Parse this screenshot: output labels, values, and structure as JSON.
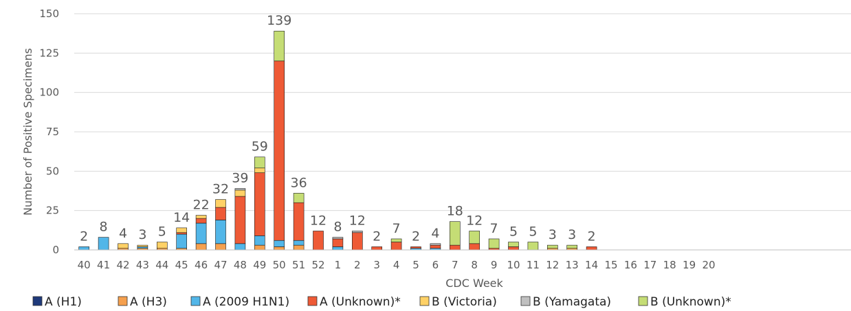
{
  "chart_data": {
    "type": "bar",
    "stacked": true,
    "title": "",
    "xlabel": "CDC Week",
    "ylabel": "Number of Positive Specimens",
    "ylim": [
      0,
      150
    ],
    "yticks": [
      0,
      25,
      50,
      75,
      100,
      125,
      150
    ],
    "grid": "horizontal",
    "legend_position": "bottom",
    "categories": [
      "40",
      "41",
      "42",
      "43",
      "44",
      "45",
      "46",
      "47",
      "48",
      "49",
      "50",
      "51",
      "52",
      "1",
      "2",
      "3",
      "4",
      "5",
      "6",
      "7",
      "8",
      "9",
      "10",
      "11",
      "12",
      "13",
      "14",
      "15",
      "16",
      "17",
      "18",
      "19",
      "20"
    ],
    "totals": [
      "2",
      "8",
      "4",
      "3",
      "5",
      "14",
      "22",
      "32",
      "39",
      "59",
      "139",
      "36",
      "12",
      "8",
      "12",
      "2",
      "7",
      "2",
      "4",
      "18",
      "12",
      "7",
      "5",
      "5",
      "3",
      "3",
      "2",
      "",
      "",
      "",
      "",
      "",
      ""
    ],
    "series": [
      {
        "name": "A (H1)",
        "color": "#1f3a7a",
        "values": [
          0,
          0,
          0,
          0,
          0,
          0,
          0,
          0,
          0,
          0,
          0,
          0,
          0,
          0,
          0,
          0,
          0,
          0,
          0,
          0,
          0,
          0,
          0,
          0,
          0,
          0,
          0,
          0,
          0,
          0,
          0,
          0,
          0
        ]
      },
      {
        "name": "A (H3)",
        "color": "#f5a04e",
        "values": [
          0,
          0,
          1,
          1,
          1,
          1,
          4,
          4,
          0,
          3,
          2,
          3,
          0,
          0,
          0,
          0,
          0,
          0,
          0,
          0,
          0,
          0,
          0,
          0,
          1,
          1,
          0,
          0,
          0,
          0,
          0,
          0,
          0
        ]
      },
      {
        "name": "A (2009 H1N1)",
        "color": "#52b6e8",
        "values": [
          2,
          8,
          0,
          1,
          0,
          9,
          13,
          15,
          4,
          6,
          4,
          3,
          0,
          2,
          0,
          0,
          0,
          1,
          1,
          0,
          0,
          0,
          0,
          0,
          0,
          0,
          0,
          0,
          0,
          0,
          0,
          0,
          0
        ]
      },
      {
        "name": "A (Unknown)*",
        "color": "#ee5a36",
        "values": [
          0,
          0,
          0,
          0,
          0,
          1,
          3,
          8,
          30,
          40,
          114,
          24,
          12,
          5,
          11,
          2,
          5,
          1,
          2,
          3,
          4,
          1,
          2,
          0,
          0,
          0,
          2,
          0,
          0,
          0,
          0,
          0,
          0
        ]
      },
      {
        "name": "B (Victoria)",
        "color": "#ffd166",
        "values": [
          0,
          0,
          3,
          1,
          4,
          3,
          2,
          5,
          4,
          3,
          0,
          0,
          0,
          0,
          0,
          0,
          0,
          0,
          0,
          0,
          0,
          0,
          0,
          0,
          0,
          0,
          0,
          0,
          0,
          0,
          0,
          0,
          0
        ]
      },
      {
        "name": "B (Yamagata)",
        "color": "#c0c0c0",
        "values": [
          0,
          0,
          0,
          0,
          0,
          0,
          0,
          0,
          1,
          0,
          0,
          0,
          0,
          1,
          1,
          0,
          0,
          0,
          1,
          0,
          0,
          0,
          0,
          0,
          0,
          0,
          0,
          0,
          0,
          0,
          0,
          0,
          0
        ]
      },
      {
        "name": "B (Unknown)*",
        "color": "#c5dd75",
        "values": [
          0,
          0,
          0,
          0,
          0,
          0,
          0,
          0,
          0,
          7,
          19,
          6,
          0,
          0,
          0,
          0,
          2,
          0,
          0,
          15,
          8,
          6,
          3,
          5,
          2,
          2,
          0,
          0,
          0,
          0,
          0,
          0,
          0
        ]
      }
    ]
  }
}
